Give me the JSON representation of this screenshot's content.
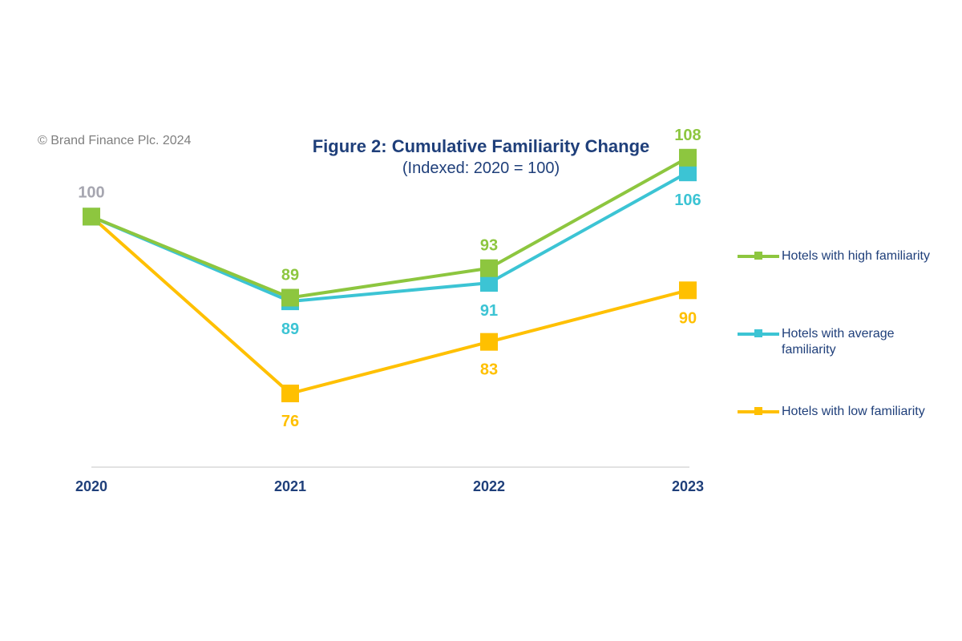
{
  "copyright": "© Brand Finance Plc. 2024",
  "chart_data": {
    "type": "line",
    "title": "Figure 2: Cumulative Familiarity Change",
    "subtitle": "(Indexed: 2020 = 100)",
    "categories": [
      "2020",
      "2021",
      "2022",
      "2023"
    ],
    "xlabel": "",
    "ylabel": "",
    "ylim": [
      66,
      112
    ],
    "grid": false,
    "legend_position": "right",
    "start_label": "100",
    "start_label_color": "#a6a6b0",
    "axis_label_color": "#1f3f7a",
    "series": [
      {
        "name": "Hotels with high familiarity",
        "values": [
          100,
          89,
          93,
          108
        ],
        "color": "#8dc63f",
        "labels": [
          "",
          "89",
          "93",
          "108"
        ],
        "label_side": [
          "none",
          "above",
          "above",
          "above"
        ]
      },
      {
        "name": "Hotels with average familiarity",
        "values": [
          100,
          88.5,
          91,
          106
        ],
        "color": "#3cc4d4",
        "labels": [
          "",
          "89",
          "91",
          "106"
        ],
        "label_side": [
          "none",
          "below",
          "below",
          "below"
        ]
      },
      {
        "name": "Hotels with low familiarity",
        "values": [
          100,
          76,
          83,
          90
        ],
        "color": "#ffc000",
        "labels": [
          "",
          "76",
          "83",
          "90"
        ],
        "label_side": [
          "none",
          "below",
          "below",
          "below"
        ]
      }
    ]
  },
  "legend": {
    "items": [
      {
        "label": "Hotels with high familiarity",
        "color": "#8dc63f"
      },
      {
        "label": "Hotels with average familiarity",
        "color": "#3cc4d4"
      },
      {
        "label": "Hotels with low familiarity",
        "color": "#ffc000"
      }
    ]
  }
}
